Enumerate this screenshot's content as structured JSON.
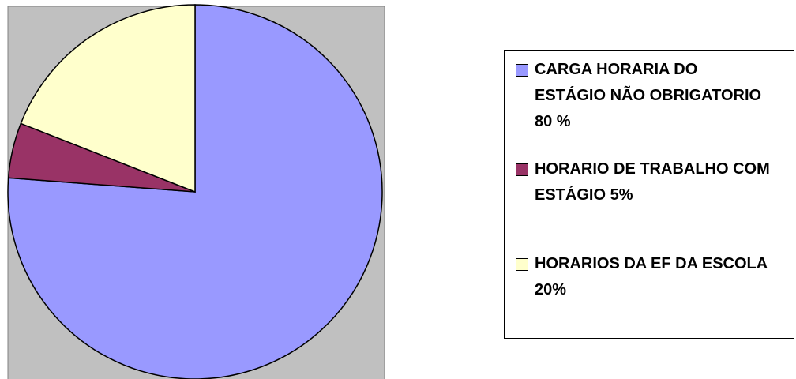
{
  "chart_data": {
    "type": "pie",
    "categories": [
      "CARGA HORARIA DO ESTÁGIO NÃO OBRIGATORIO    80 %",
      "HORARIO DE TRABALHO COM ESTÁGIO 5%",
      "HORARIOS DA EF DA ESCOLA 20%"
    ],
    "values": [
      80,
      5,
      20
    ],
    "colors": [
      "#9999ff",
      "#993366",
      "#ffffcc"
    ],
    "legend": "right"
  }
}
